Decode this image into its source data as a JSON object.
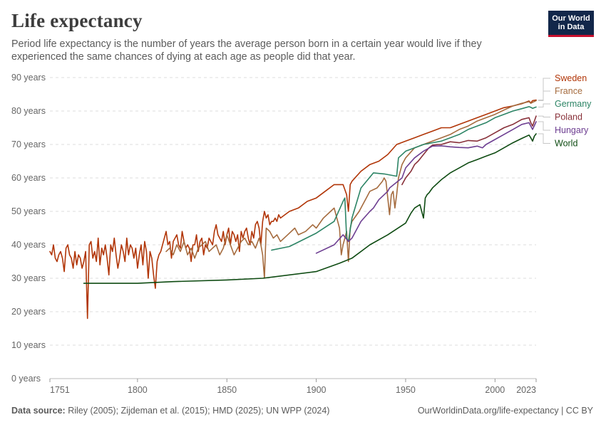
{
  "header": {
    "title": "Life expectancy",
    "subtitle": "Period life expectancy is the number of years the average person born in a certain year would live if they experienced the same chances of dying at each age as people did that year."
  },
  "logo": {
    "line1": "Our World",
    "line2": "in Data",
    "bg_color": "#12274a",
    "accent_color": "#c8102e"
  },
  "footer": {
    "source_label": "Data source:",
    "source_text": " Riley (2005); Zijdeman et al. (2015); HMD (2025); UN WPP (2024)",
    "url_license": "OurWorldinData.org/life-expectancy | CC BY"
  },
  "chart_data": {
    "type": "line",
    "title": "Life expectancy",
    "xlabel": "",
    "ylabel": "",
    "xlim": [
      1751,
      2023
    ],
    "ylim": [
      0,
      90
    ],
    "x_ticks": [
      1751,
      1800,
      1850,
      1900,
      1950,
      2000,
      2023
    ],
    "y_ticks": [
      0,
      10,
      20,
      30,
      40,
      50,
      60,
      70,
      80,
      90
    ],
    "y_tick_labels": [
      "0 years",
      "10 years",
      "20 years",
      "30 years",
      "40 years",
      "50 years",
      "60 years",
      "70 years",
      "80 years",
      "90 years"
    ],
    "grid": "horizontal dashed",
    "legend": "right",
    "series": [
      {
        "name": "Sweden",
        "color": "#b13507",
        "x": [
          1751,
          1752,
          1753,
          1754,
          1755,
          1756,
          1757,
          1758,
          1759,
          1760,
          1761,
          1762,
          1763,
          1764,
          1765,
          1766,
          1767,
          1768,
          1769,
          1770,
          1771,
          1772,
          1773,
          1774,
          1775,
          1776,
          1777,
          1778,
          1779,
          1780,
          1781,
          1782,
          1783,
          1784,
          1785,
          1786,
          1787,
          1788,
          1789,
          1790,
          1791,
          1792,
          1793,
          1794,
          1795,
          1796,
          1797,
          1798,
          1799,
          1800,
          1801,
          1802,
          1803,
          1804,
          1805,
          1806,
          1807,
          1808,
          1809,
          1810,
          1811,
          1812,
          1813,
          1814,
          1815,
          1816,
          1817,
          1818,
          1819,
          1820,
          1821,
          1822,
          1823,
          1824,
          1825,
          1826,
          1827,
          1828,
          1829,
          1830,
          1831,
          1832,
          1833,
          1834,
          1835,
          1836,
          1837,
          1838,
          1839,
          1840,
          1841,
          1842,
          1843,
          1844,
          1845,
          1846,
          1847,
          1848,
          1849,
          1850,
          1851,
          1852,
          1853,
          1854,
          1855,
          1856,
          1857,
          1858,
          1859,
          1860,
          1861,
          1862,
          1863,
          1864,
          1865,
          1866,
          1867,
          1868,
          1869,
          1870,
          1871,
          1872,
          1873,
          1874,
          1875,
          1876,
          1877,
          1878,
          1879,
          1880,
          1885,
          1890,
          1895,
          1900,
          1905,
          1910,
          1915,
          1917,
          1918,
          1919,
          1920,
          1925,
          1930,
          1935,
          1940,
          1945,
          1950,
          1955,
          1960,
          1965,
          1970,
          1975,
          1980,
          1985,
          1990,
          1995,
          2000,
          2005,
          2010,
          2015,
          2019,
          2020,
          2021,
          2023
        ],
        "y": [
          38,
          37,
          40,
          36,
          35,
          37,
          38,
          36,
          32,
          39,
          40,
          37,
          36,
          33,
          38,
          34,
          37,
          36,
          33,
          35,
          38,
          18,
          40,
          41,
          36,
          38,
          35,
          42,
          34,
          39,
          37,
          40,
          36,
          31,
          40,
          38,
          42,
          37,
          33,
          36,
          40,
          38,
          35,
          42,
          37,
          40,
          39,
          36,
          39,
          33,
          37,
          40,
          34,
          41,
          38,
          30,
          38,
          36,
          31,
          27,
          35,
          37,
          38,
          40,
          42,
          44,
          40,
          41,
          36,
          41,
          42,
          43,
          40,
          39,
          44,
          41,
          39,
          40,
          39,
          35,
          40,
          40,
          43,
          38,
          41,
          42,
          37,
          40,
          39,
          42,
          41,
          40,
          44,
          46,
          43,
          42,
          41,
          44,
          40,
          43,
          45,
          40,
          44,
          43,
          41,
          43,
          38,
          44,
          42,
          44,
          45,
          42,
          40,
          44,
          42,
          46,
          47,
          45,
          40,
          47,
          50,
          48,
          49,
          46,
          47,
          47,
          48,
          47,
          49,
          48,
          50,
          51,
          53,
          54,
          56,
          58,
          58,
          55,
          50,
          58,
          59,
          62,
          64,
          65,
          67,
          70,
          71,
          72,
          73,
          74,
          75,
          75,
          76,
          77,
          78,
          79,
          80,
          81,
          81.5,
          82.2,
          83,
          82.4,
          83.1,
          83.3
        ]
      },
      {
        "name": "France",
        "color": "#a56b3e",
        "x": [
          1816,
          1818,
          1820,
          1822,
          1824,
          1826,
          1828,
          1830,
          1832,
          1834,
          1836,
          1838,
          1840,
          1842,
          1844,
          1846,
          1848,
          1850,
          1852,
          1854,
          1856,
          1858,
          1860,
          1862,
          1864,
          1866,
          1868,
          1869,
          1870,
          1871,
          1872,
          1874,
          1876,
          1878,
          1880,
          1884,
          1888,
          1890,
          1894,
          1898,
          1900,
          1904,
          1908,
          1910,
          1913,
          1914,
          1915,
          1916,
          1917,
          1918,
          1919,
          1920,
          1924,
          1928,
          1930,
          1934,
          1937,
          1938,
          1939,
          1940,
          1941,
          1942,
          1943,
          1944,
          1945,
          1946,
          1948,
          1950,
          1955,
          1960,
          1965,
          1970,
          1975,
          1980,
          1985,
          1990,
          1995,
          2000,
          2005,
          2010,
          2015,
          2019,
          2020,
          2021,
          2023
        ],
        "y": [
          38,
          39,
          37,
          40,
          38,
          41,
          37,
          39,
          36,
          39,
          40,
          41,
          38,
          39,
          40,
          37,
          39,
          43,
          40,
          37,
          39,
          41,
          42,
          40,
          41,
          39,
          42,
          40,
          37,
          30,
          45,
          44,
          42,
          43,
          41,
          43,
          45,
          43,
          44,
          46,
          45,
          48,
          50,
          51,
          45,
          37,
          40,
          42,
          44,
          35,
          45,
          47,
          50,
          54,
          56,
          57,
          59,
          60,
          59,
          54,
          49,
          55,
          56,
          51,
          55,
          60,
          64,
          66,
          69,
          70,
          71,
          72,
          73,
          74.5,
          75.5,
          77,
          78,
          79,
          80.3,
          81.5,
          82.3,
          82.8,
          82.3,
          82.6,
          83.1
        ]
      },
      {
        "name": "Germany",
        "color": "#2c8465",
        "x": [
          1875,
          1885,
          1900,
          1910,
          1915,
          1916,
          1917,
          1918,
          1920,
          1925,
          1932,
          1938,
          1945,
          1946,
          1950,
          1955,
          1960,
          1965,
          1970,
          1975,
          1980,
          1985,
          1990,
          1995,
          2000,
          2005,
          2010,
          2015,
          2019,
          2020,
          2021,
          2023
        ],
        "y": [
          38.4,
          39.5,
          43.5,
          47,
          53,
          54,
          42,
          41,
          48,
          57,
          61.5,
          61.2,
          60.5,
          66,
          68,
          69,
          70,
          70.5,
          71,
          72,
          73,
          74.5,
          75.5,
          76.5,
          78,
          79,
          80,
          80.7,
          81.3,
          81.1,
          80.8,
          81.2
        ]
      },
      {
        "name": "Poland",
        "color": "#883039",
        "x": [
          1948,
          1950,
          1953,
          1955,
          1957,
          1960,
          1963,
          1965,
          1968,
          1970,
          1975,
          1980,
          1985,
          1990,
          1995,
          2000,
          2005,
          2010,
          2015,
          2019,
          2020,
          2021,
          2023
        ],
        "y": [
          58,
          60,
          62,
          64,
          65,
          67,
          69,
          69.8,
          70,
          70,
          70.8,
          70.5,
          71.2,
          71,
          72,
          73.5,
          75,
          76,
          77.5,
          78,
          76.5,
          75.5,
          78.5
        ]
      },
      {
        "name": "Hungary",
        "color": "#6d3e91",
        "x": [
          1900,
          1910,
          1915,
          1918,
          1920,
          1925,
          1930,
          1932,
          1935,
          1940,
          1941,
          1948,
          1950,
          1955,
          1960,
          1965,
          1970,
          1975,
          1980,
          1985,
          1990,
          1993,
          1995,
          2000,
          2005,
          2010,
          2015,
          2019,
          2020,
          2021,
          2023
        ],
        "y": [
          37.5,
          40,
          43,
          41,
          42,
          47,
          50,
          51,
          53.5,
          56,
          57,
          60,
          63,
          66,
          68,
          69.5,
          69.6,
          69.3,
          69.1,
          69,
          69.5,
          69,
          70,
          71.5,
          73,
          74.5,
          76,
          76.5,
          75.5,
          74.5,
          76.8
        ]
      },
      {
        "name": "World",
        "color": "#0e4b12",
        "x": [
          1770,
          1800,
          1820,
          1850,
          1870,
          1900,
          1913,
          1920,
          1930,
          1940,
          1950,
          1953,
          1955,
          1958,
          1960,
          1961,
          1962,
          1963,
          1965,
          1970,
          1975,
          1980,
          1985,
          1990,
          1995,
          2000,
          2005,
          2010,
          2015,
          2019,
          2020,
          2021,
          2022,
          2023
        ],
        "y": [
          28.5,
          28.5,
          29,
          29.5,
          30,
          32,
          34.5,
          36,
          40,
          43,
          46.5,
          49.5,
          51,
          52,
          48,
          54,
          55,
          55.5,
          57,
          59.5,
          61.5,
          63,
          64.5,
          65.5,
          66.5,
          67.5,
          69,
          70.5,
          71.8,
          72.8,
          72,
          71,
          72.5,
          73.2
        ]
      }
    ]
  }
}
